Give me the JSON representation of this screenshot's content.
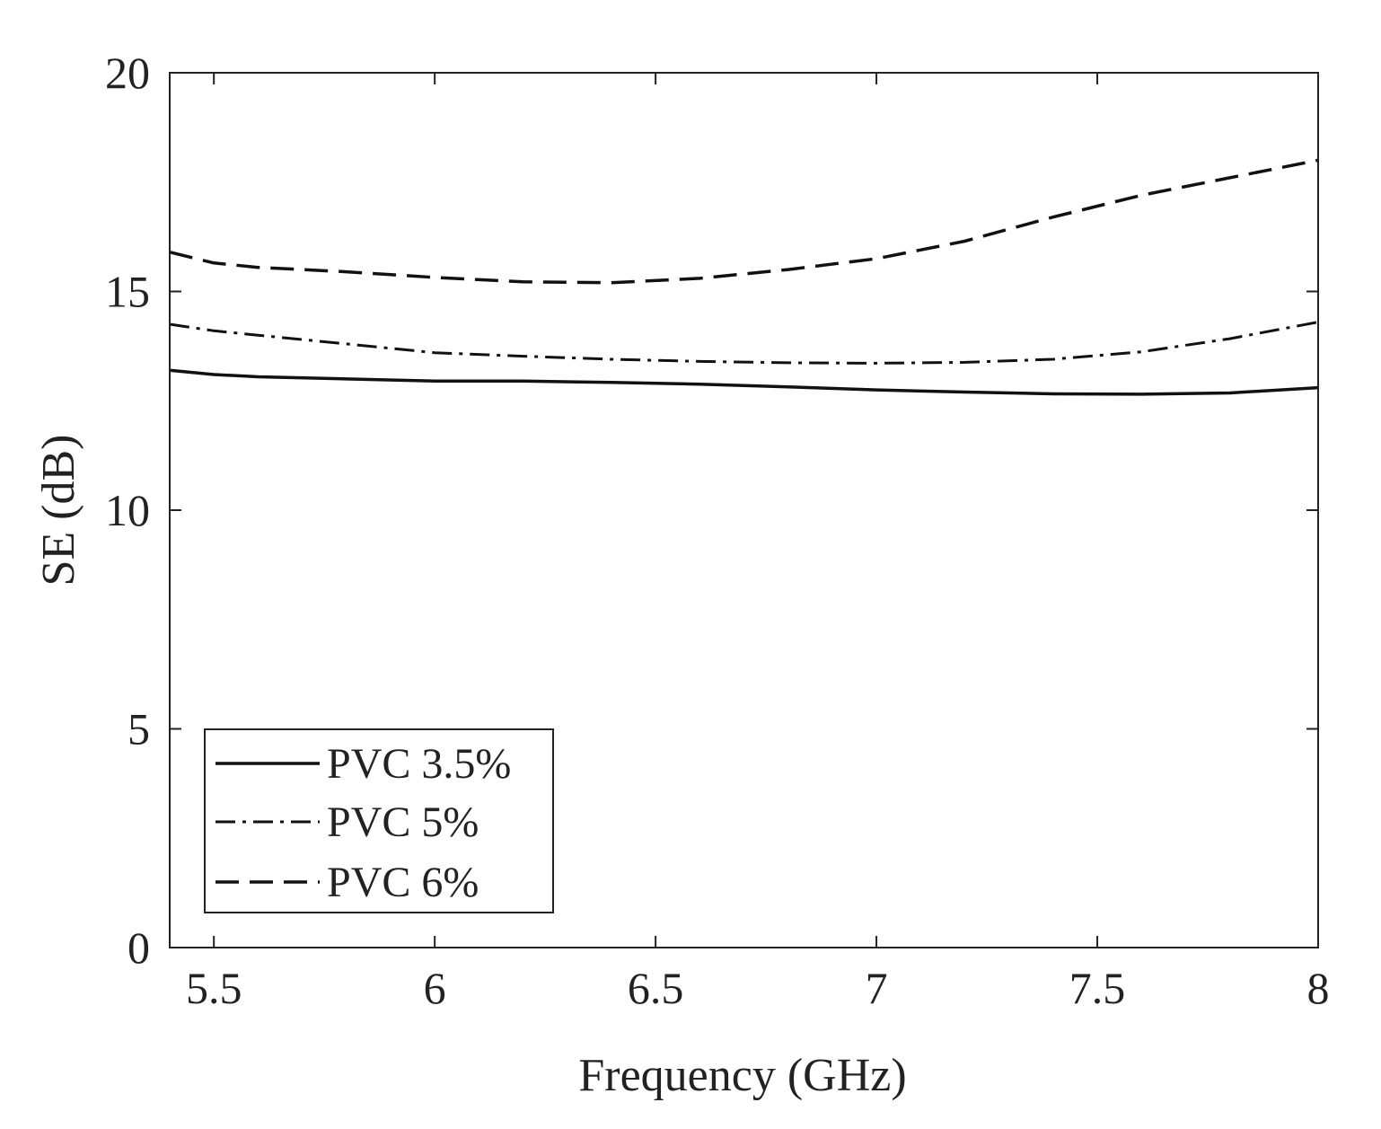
{
  "chart_data": {
    "type": "line",
    "title": "",
    "xlabel": "Frequency (GHz)",
    "ylabel": "SE (dB)",
    "xlim": [
      5.4,
      8
    ],
    "ylim": [
      0,
      20
    ],
    "xticks": [
      5.5,
      6,
      6.5,
      7,
      7.5,
      8
    ],
    "xtick_labels": [
      "5.5",
      "6",
      "6.5",
      "7",
      "7.5",
      "8"
    ],
    "yticks": [
      0,
      5,
      10,
      15,
      20
    ],
    "ytick_labels": [
      "0",
      "5",
      "10",
      "15",
      "20"
    ],
    "grid": false,
    "legend": "bottom-left",
    "series": [
      {
        "name": "PVC 3.5%",
        "style": "solid",
        "x": [
          5.4,
          5.5,
          5.6,
          5.8,
          6.0,
          6.2,
          6.4,
          6.6,
          6.8,
          7.0,
          7.2,
          7.4,
          7.6,
          7.8,
          8.0
        ],
        "values": [
          13.2,
          13.1,
          13.05,
          13.0,
          12.95,
          12.95,
          12.92,
          12.88,
          12.82,
          12.75,
          12.7,
          12.66,
          12.65,
          12.68,
          12.8
        ]
      },
      {
        "name": "PVC 5%",
        "style": "dashdot",
        "x": [
          5.4,
          5.5,
          5.6,
          5.8,
          6.0,
          6.2,
          6.4,
          6.6,
          6.8,
          7.0,
          7.2,
          7.4,
          7.6,
          7.8,
          8.0
        ],
        "values": [
          14.25,
          14.1,
          14.0,
          13.8,
          13.6,
          13.52,
          13.45,
          13.4,
          13.37,
          13.36,
          13.38,
          13.45,
          13.62,
          13.92,
          14.3
        ]
      },
      {
        "name": "PVC 6%",
        "style": "dashed",
        "x": [
          5.4,
          5.5,
          5.6,
          5.8,
          6.0,
          6.2,
          6.4,
          6.6,
          6.8,
          7.0,
          7.2,
          7.4,
          7.6,
          7.8,
          8.0
        ],
        "values": [
          15.9,
          15.65,
          15.55,
          15.45,
          15.32,
          15.22,
          15.2,
          15.3,
          15.5,
          15.75,
          16.15,
          16.7,
          17.2,
          17.6,
          18.0
        ]
      }
    ]
  }
}
